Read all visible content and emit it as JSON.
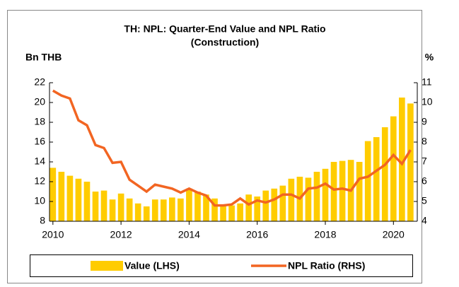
{
  "chart_data": {
    "type": "bar-line",
    "title": "TH: NPL: Quarter-End Value and NPL Ratio",
    "subtitle": "(Construction)",
    "y_label": "Bn THB",
    "y2_label": "%",
    "x": [
      2010,
      2010.25,
      2010.5,
      2010.75,
      2011,
      2011.25,
      2011.5,
      2011.75,
      2012,
      2012.25,
      2012.5,
      2012.75,
      2013,
      2013.25,
      2013.5,
      2013.75,
      2014,
      2014.25,
      2014.5,
      2014.75,
      2015,
      2015.25,
      2015.5,
      2015.75,
      2016,
      2016.25,
      2016.5,
      2016.75,
      2017,
      2017.25,
      2017.5,
      2017.75,
      2018,
      2018.25,
      2018.5,
      2018.75,
      2019,
      2019.25,
      2019.5,
      2019.75,
      2020,
      2020.25,
      2020.5
    ],
    "series": [
      {
        "name": "Value (LHS)",
        "kind": "bar",
        "color": "#ffcc00",
        "values": [
          13.4,
          13.0,
          12.6,
          12.3,
          12.0,
          11.0,
          11.1,
          10.2,
          10.8,
          10.3,
          9.8,
          9.5,
          10.2,
          10.2,
          10.4,
          10.3,
          11.3,
          11.0,
          10.7,
          10.3,
          9.5,
          9.6,
          9.8,
          10.7,
          10.5,
          11.1,
          11.3,
          11.6,
          12.3,
          12.5,
          12.4,
          13.0,
          13.3,
          14.0,
          14.1,
          14.2,
          14.0,
          16.1,
          16.5,
          17.5,
          18.6,
          20.5,
          19.9
        ]
      },
      {
        "name": "NPL Ratio (RHS)",
        "kind": "line",
        "axis": "y2",
        "color": "#f26522",
        "values": [
          10.6,
          10.35,
          10.2,
          9.1,
          8.85,
          7.85,
          7.7,
          6.95,
          7.0,
          6.1,
          5.8,
          5.5,
          5.85,
          5.75,
          5.65,
          5.45,
          5.65,
          5.45,
          5.3,
          4.8,
          4.8,
          4.85,
          5.15,
          4.85,
          5.05,
          4.95,
          5.1,
          5.35,
          5.35,
          5.15,
          5.65,
          5.7,
          5.9,
          5.6,
          5.65,
          5.55,
          6.15,
          6.25,
          6.55,
          6.85,
          7.35,
          6.9,
          7.6
        ]
      }
    ],
    "xlim": [
      2009.9,
      2020.7
    ],
    "xticks": [
      2010,
      2012,
      2014,
      2016,
      2018,
      2020
    ],
    "ylim": [
      8,
      22
    ],
    "yticks": [
      8,
      10,
      12,
      14,
      16,
      18,
      20,
      22
    ],
    "y2lim": [
      4,
      11
    ],
    "y2ticks": [
      4,
      5,
      6,
      7,
      8,
      9,
      10,
      11
    ]
  }
}
